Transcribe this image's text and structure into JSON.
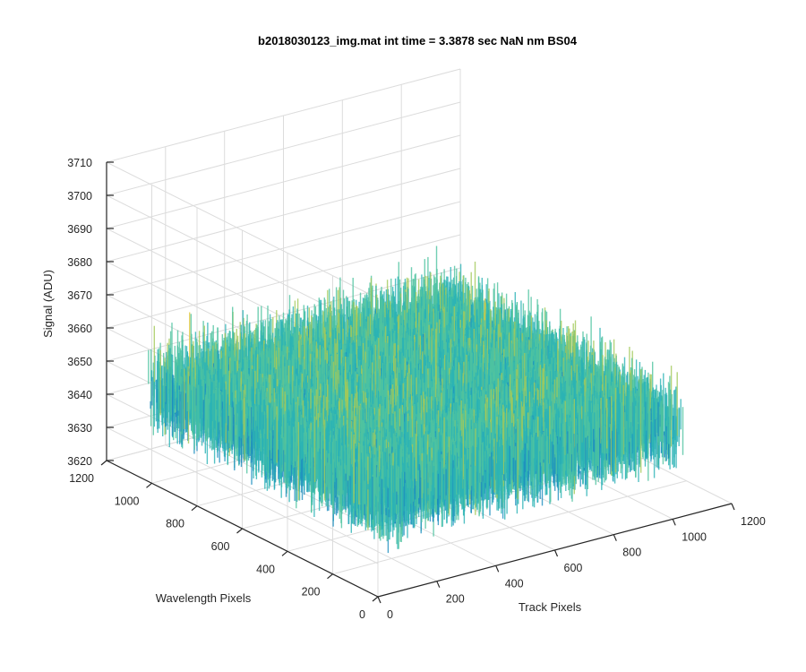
{
  "chart_data": {
    "type": "surface",
    "title": "b2018030123_img.mat int time = 3.3878 sec  NaN nm BS04",
    "xlabel": "Track Pixels",
    "ylabel": "Wavelength Pixels",
    "zlabel": "Signal (ADU)",
    "xlim": [
      0,
      1200
    ],
    "ylim": [
      0,
      1200
    ],
    "zlim": [
      3620,
      3710
    ],
    "x_ticks": [
      "0",
      "200",
      "400",
      "600",
      "800",
      "1000",
      "1200"
    ],
    "y_ticks": [
      "0",
      "200",
      "400",
      "600",
      "800",
      "1000",
      "1200"
    ],
    "z_ticks": [
      "3620",
      "3630",
      "3640",
      "3650",
      "3660",
      "3670",
      "3680",
      "3690",
      "3700",
      "3710"
    ],
    "grid": true,
    "surface_extent": {
      "x": [
        0,
        1024
      ],
      "y": [
        0,
        1024
      ]
    },
    "signal_mean": 3648,
    "signal_noise_range": [
      3625,
      3690
    ],
    "colormap": [
      "#0072bd",
      "#1e8fbf",
      "#2bb3b5",
      "#4fc3a0",
      "#a3c95a",
      "#e3c940"
    ]
  }
}
